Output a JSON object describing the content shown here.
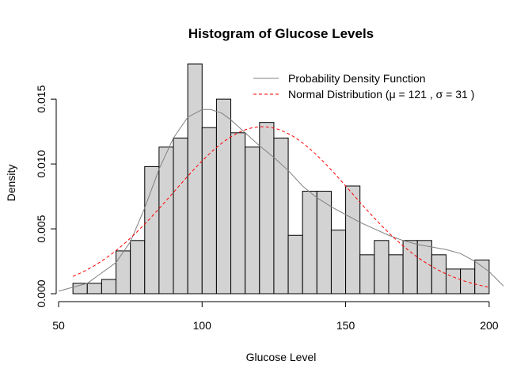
{
  "chart_data": {
    "type": "histogram",
    "title": "Histogram of Glucose Levels",
    "xlabel": "Glucose Level",
    "ylabel": "Density",
    "xlim": [
      50,
      205
    ],
    "ylim": [
      0,
      0.018
    ],
    "x_ticks": [
      50,
      100,
      150,
      200
    ],
    "y_ticks": [
      0.0,
      0.005,
      0.01,
      0.015
    ],
    "y_tick_labels": [
      "0.000",
      "0.005",
      "0.010",
      "0.015"
    ],
    "bin_width": 5,
    "bins": [
      {
        "start": 55,
        "end": 60,
        "density": 0.0008
      },
      {
        "start": 60,
        "end": 65,
        "density": 0.0008
      },
      {
        "start": 65,
        "end": 70,
        "density": 0.0011
      },
      {
        "start": 70,
        "end": 75,
        "density": 0.0033
      },
      {
        "start": 75,
        "end": 80,
        "density": 0.0041
      },
      {
        "start": 80,
        "end": 85,
        "density": 0.0098
      },
      {
        "start": 85,
        "end": 90,
        "density": 0.0113
      },
      {
        "start": 90,
        "end": 95,
        "density": 0.012
      },
      {
        "start": 95,
        "end": 100,
        "density": 0.0177
      },
      {
        "start": 100,
        "end": 105,
        "density": 0.0128
      },
      {
        "start": 105,
        "end": 110,
        "density": 0.015
      },
      {
        "start": 110,
        "end": 115,
        "density": 0.0124
      },
      {
        "start": 115,
        "end": 120,
        "density": 0.0113
      },
      {
        "start": 120,
        "end": 125,
        "density": 0.0132
      },
      {
        "start": 125,
        "end": 130,
        "density": 0.012
      },
      {
        "start": 130,
        "end": 135,
        "density": 0.0045
      },
      {
        "start": 135,
        "end": 140,
        "density": 0.0079
      },
      {
        "start": 140,
        "end": 145,
        "density": 0.0079
      },
      {
        "start": 145,
        "end": 150,
        "density": 0.0049
      },
      {
        "start": 150,
        "end": 155,
        "density": 0.0083
      },
      {
        "start": 155,
        "end": 160,
        "density": 0.003
      },
      {
        "start": 160,
        "end": 165,
        "density": 0.0041
      },
      {
        "start": 165,
        "end": 170,
        "density": 0.003
      },
      {
        "start": 170,
        "end": 175,
        "density": 0.0041
      },
      {
        "start": 175,
        "end": 180,
        "density": 0.0041
      },
      {
        "start": 180,
        "end": 185,
        "density": 0.003
      },
      {
        "start": 185,
        "end": 190,
        "density": 0.0019
      },
      {
        "start": 190,
        "end": 195,
        "density": 0.0019
      },
      {
        "start": 195,
        "end": 200,
        "density": 0.0026
      }
    ],
    "bar_fill": "#d3d3d3",
    "series": [
      {
        "name": "Probability Density Function",
        "style": "solid",
        "color": "#808080",
        "x": [
          40,
          50,
          60,
          70,
          75,
          80,
          85,
          90,
          95,
          100,
          103,
          107,
          110,
          115,
          120,
          125,
          130,
          135,
          140,
          145,
          150,
          155,
          160,
          165,
          170,
          175,
          180,
          185,
          190,
          195,
          200,
          205,
          210
        ],
        "y": [
          0.0,
          0.0002,
          0.0008,
          0.0024,
          0.004,
          0.0066,
          0.0096,
          0.012,
          0.0136,
          0.0142,
          0.0142,
          0.0139,
          0.0134,
          0.0124,
          0.0114,
          0.0105,
          0.0095,
          0.0083,
          0.0074,
          0.0067,
          0.0061,
          0.0055,
          0.005,
          0.0045,
          0.0041,
          0.0038,
          0.0036,
          0.0034,
          0.0031,
          0.0025,
          0.0017,
          0.0006,
          0.0
        ]
      },
      {
        "name": "Normal Distribution (μ = 121 , σ = 31 )",
        "style": "dashed",
        "color": "#ff0000",
        "mean": 121,
        "sd": 31,
        "x_range": [
          55,
          200
        ]
      }
    ],
    "legend": {
      "position": "top-right",
      "entries": [
        "Probability Density Function",
        "Normal Distribution (μ = 121 , σ = 31 )"
      ]
    },
    "grid": false
  }
}
